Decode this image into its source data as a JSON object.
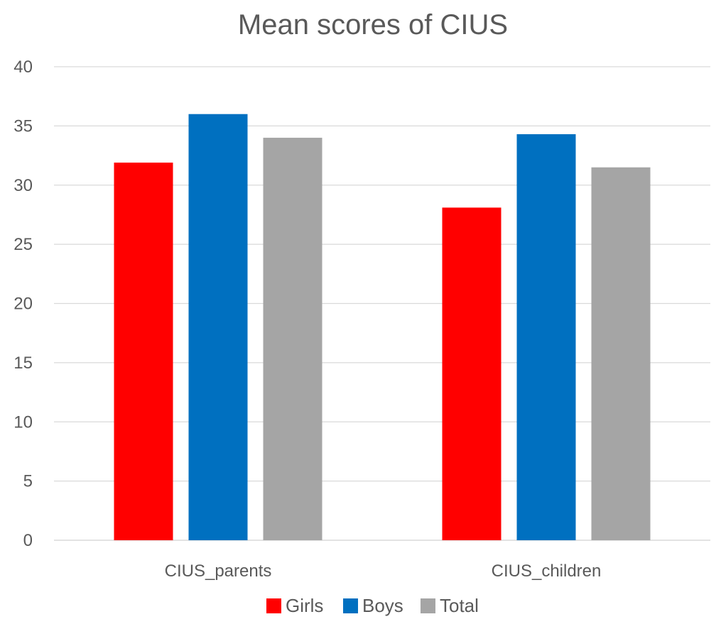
{
  "chart_data": {
    "type": "bar",
    "title": "Mean scores of CIUS",
    "categories": [
      "CIUS_parents",
      "CIUS_children"
    ],
    "series": [
      {
        "name": "Girls",
        "color": "#ff0000",
        "values": [
          31.9,
          28.1
        ]
      },
      {
        "name": "Boys",
        "color": "#0070c0",
        "values": [
          36.0,
          34.3
        ]
      },
      {
        "name": "Total",
        "color": "#a5a5a5",
        "values": [
          34.0,
          31.5
        ]
      }
    ],
    "xlabel": "",
    "ylabel": "",
    "ylim": [
      0,
      40
    ],
    "yticks": [
      "0",
      "5",
      "10",
      "15",
      "20",
      "25",
      "30",
      "35",
      "40"
    ],
    "grid": true,
    "legend_position": "bottom"
  }
}
